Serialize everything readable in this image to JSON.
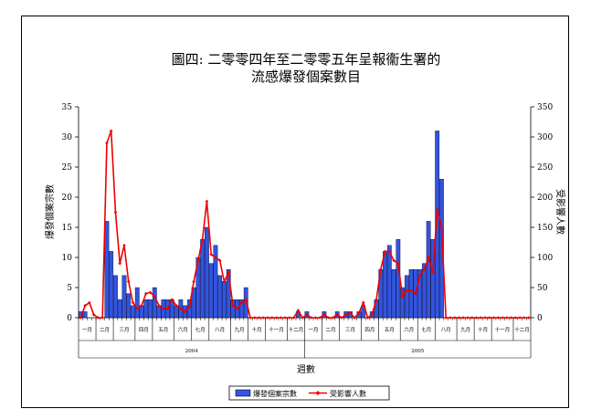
{
  "chart_data": {
    "type": "bar+line",
    "title_lines": [
      "圖四: 二零零四年至二零零五年呈報衞生署的",
      "流感爆發個案數目"
    ],
    "xlabel": "週數",
    "ylabel_left": "爆發個案宗數",
    "ylabel_right": "受影響人數",
    "ylim_left": [
      0,
      35
    ],
    "ylim_right": [
      0,
      350
    ],
    "yticks_left": [
      "0",
      "5",
      "10",
      "15",
      "20",
      "25",
      "30",
      "35"
    ],
    "yticks_right": [
      "0",
      "50",
      "100",
      "150",
      "200",
      "250",
      "300",
      "350"
    ],
    "grid": false,
    "legend_position": "bottom",
    "years": [
      {
        "label": "2004",
        "start_week": 0,
        "end_week": 52
      },
      {
        "label": "2005",
        "start_week": 52,
        "end_week": 104
      }
    ],
    "months": [
      {
        "label": "一月",
        "start_week": 0,
        "end_week": 4
      },
      {
        "label": "二月",
        "start_week": 4,
        "end_week": 8
      },
      {
        "label": "三月",
        "start_week": 8,
        "end_week": 13
      },
      {
        "label": "四月",
        "start_week": 13,
        "end_week": 17
      },
      {
        "label": "五月",
        "start_week": 17,
        "end_week": 22
      },
      {
        "label": "六月",
        "start_week": 22,
        "end_week": 26
      },
      {
        "label": "七月",
        "start_week": 26,
        "end_week": 30
      },
      {
        "label": "八月",
        "start_week": 30,
        "end_week": 35
      },
      {
        "label": "九月",
        "start_week": 35,
        "end_week": 39
      },
      {
        "label": "十月",
        "start_week": 39,
        "end_week": 43
      },
      {
        "label": "十一月",
        "start_week": 43,
        "end_week": 48
      },
      {
        "label": "十二月",
        "start_week": 48,
        "end_week": 52
      },
      {
        "label": "一月",
        "start_week": 52,
        "end_week": 56
      },
      {
        "label": "二月",
        "start_week": 56,
        "end_week": 60
      },
      {
        "label": "三月",
        "start_week": 60,
        "end_week": 65
      },
      {
        "label": "四月",
        "start_week": 65,
        "end_week": 69
      },
      {
        "label": "五月",
        "start_week": 69,
        "end_week": 74
      },
      {
        "label": "六月",
        "start_week": 74,
        "end_week": 78
      },
      {
        "label": "七月",
        "start_week": 78,
        "end_week": 82
      },
      {
        "label": "八月",
        "start_week": 82,
        "end_week": 87
      },
      {
        "label": "九月",
        "start_week": 87,
        "end_week": 91
      },
      {
        "label": "十月",
        "start_week": 91,
        "end_week": 95
      },
      {
        "label": "十一月",
        "start_week": 95,
        "end_week": 100
      },
      {
        "label": "十二月",
        "start_week": 100,
        "end_week": 104
      }
    ],
    "series": [
      {
        "name": "爆發個案宗數",
        "axis": "left",
        "kind": "bar",
        "color": "#3355dd",
        "values": [
          1,
          1,
          0,
          0,
          0,
          0,
          16,
          11,
          7,
          3,
          7,
          4,
          2,
          5,
          2,
          3,
          3,
          5,
          2,
          3,
          3,
          3,
          2,
          3,
          2,
          3,
          5,
          10,
          13,
          15,
          9,
          12,
          7,
          6,
          8,
          3,
          3,
          3,
          5,
          0,
          0,
          0,
          0,
          0,
          0,
          0,
          0,
          0,
          0,
          0,
          1,
          0,
          1,
          0,
          0,
          0,
          1,
          0,
          0,
          1,
          0,
          1,
          1,
          0,
          1,
          2,
          0,
          1,
          3,
          8,
          11,
          12,
          8,
          13,
          5,
          7,
          8,
          8,
          8,
          9,
          16,
          13,
          31,
          23,
          0,
          0,
          0,
          0,
          0,
          0,
          0,
          0,
          0,
          0,
          0,
          0,
          0,
          0,
          0,
          0,
          0,
          0,
          0,
          0
        ]
      },
      {
        "name": "受影響人數",
        "axis": "right",
        "kind": "line",
        "color": "#ee0000",
        "values": [
          0,
          20,
          25,
          5,
          0,
          0,
          290,
          310,
          175,
          90,
          120,
          60,
          25,
          15,
          20,
          40,
          42,
          35,
          20,
          15,
          15,
          30,
          20,
          15,
          10,
          18,
          60,
          95,
          130,
          193,
          105,
          100,
          95,
          60,
          75,
          20,
          15,
          25,
          30,
          0,
          0,
          0,
          0,
          0,
          0,
          0,
          0,
          0,
          0,
          0,
          12,
          0,
          5,
          0,
          0,
          0,
          5,
          0,
          0,
          5,
          0,
          5,
          8,
          0,
          8,
          25,
          0,
          5,
          30,
          80,
          110,
          110,
          95,
          90,
          35,
          45,
          45,
          40,
          70,
          80,
          100,
          75,
          180,
          150,
          0,
          0,
          0,
          0,
          0,
          0,
          0,
          0,
          0,
          0,
          0,
          0,
          0,
          0,
          0,
          0,
          0,
          0,
          0,
          0
        ]
      }
    ]
  },
  "colors": {
    "bar_fill": "#3355dd",
    "bar_stroke": "#000033",
    "line": "#ee0000"
  }
}
